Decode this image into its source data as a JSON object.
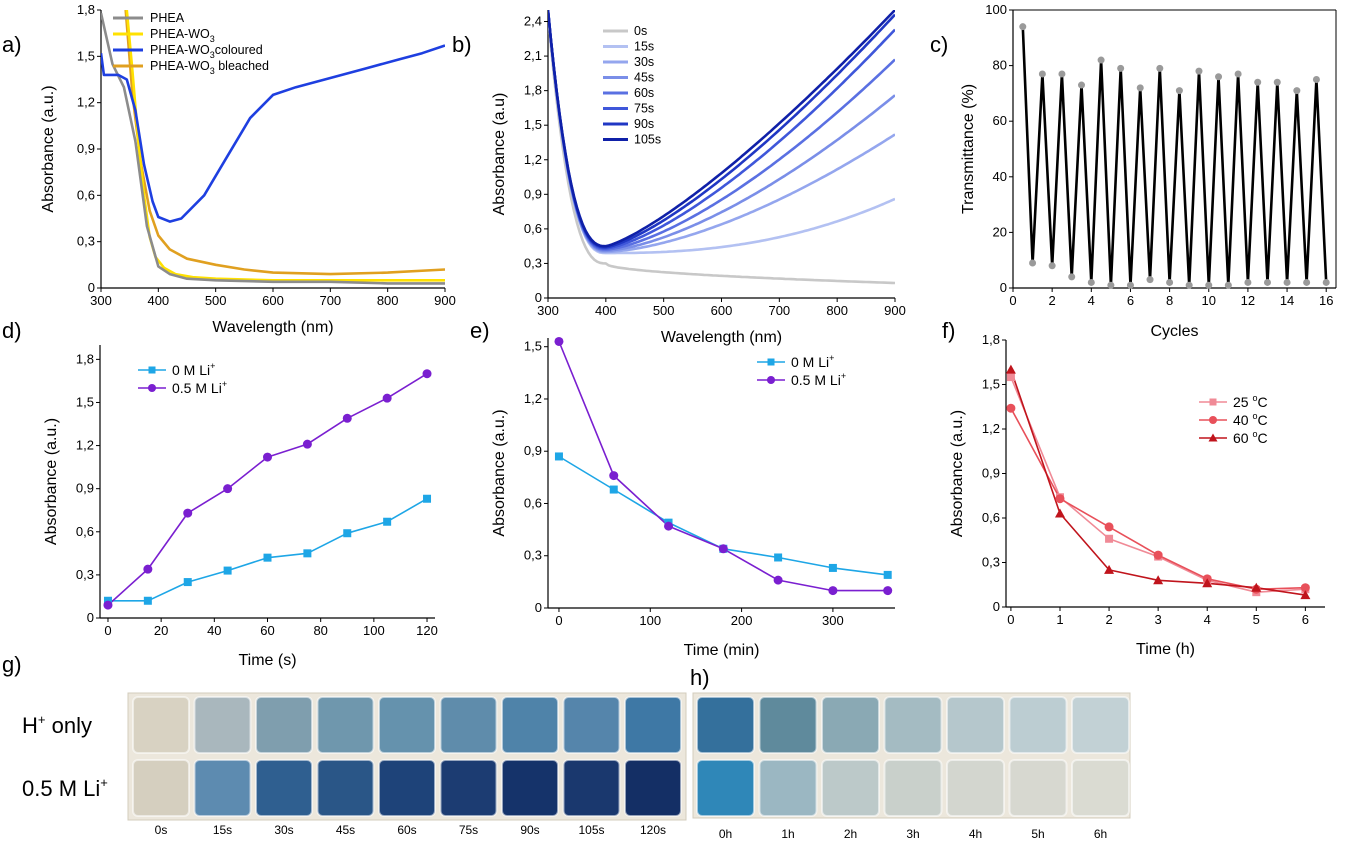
{
  "figure_labels": {
    "a": "a)",
    "b": "b)",
    "c": "c)",
    "d": "d)",
    "e": "e)",
    "f": "f)",
    "g": "g)",
    "h": "h)"
  },
  "chart_data": [
    {
      "id": "a",
      "type": "line",
      "xlabel": "Wavelength (nm)",
      "ylabel": "Absorbance (a.u.)",
      "xlim": [
        300,
        900
      ],
      "ylim": [
        0,
        1.8
      ],
      "xticks": [
        300,
        400,
        500,
        600,
        700,
        800,
        900
      ],
      "yticks": [
        "0",
        "0,3",
        "0,6",
        "0,9",
        "1,2",
        "1,5",
        "1,8"
      ],
      "legend_position": "top-left",
      "series": [
        {
          "name": "PHEA",
          "color": "#8c8c8c",
          "x": [
            300,
            320,
            340,
            360,
            380,
            400,
            420,
            450,
            500,
            600,
            700,
            800,
            900
          ],
          "y": [
            1.78,
            1.45,
            1.3,
            0.95,
            0.4,
            0.14,
            0.09,
            0.06,
            0.05,
            0.04,
            0.04,
            0.03,
            0.03
          ]
        },
        {
          "name": "PHEA-WO3",
          "color": "#ffe100",
          "x": [
            345,
            355,
            365,
            375,
            385,
            395,
            410,
            430,
            460,
            500,
            600,
            700,
            800,
            900
          ],
          "y": [
            1.8,
            1.4,
            0.95,
            0.6,
            0.33,
            0.2,
            0.13,
            0.09,
            0.07,
            0.06,
            0.05,
            0.05,
            0.05,
            0.05
          ]
        },
        {
          "name": "PHEA-WO3 coloured",
          "color": "#1e3fe0",
          "x": [
            300,
            305,
            330,
            345,
            360,
            375,
            390,
            400,
            420,
            440,
            480,
            520,
            560,
            600,
            640,
            700,
            760,
            820,
            860,
            900
          ],
          "y": [
            1.52,
            1.38,
            1.38,
            1.35,
            1.15,
            0.8,
            0.56,
            0.46,
            0.43,
            0.45,
            0.6,
            0.85,
            1.1,
            1.25,
            1.3,
            1.36,
            1.42,
            1.48,
            1.52,
            1.57
          ]
        },
        {
          "name": "PHEA-WO3 bleached",
          "color": "#e0a020",
          "x": [
            343,
            355,
            370,
            385,
            400,
            420,
            450,
            500,
            550,
            600,
            700,
            800,
            900
          ],
          "y": [
            1.8,
            1.25,
            0.8,
            0.5,
            0.34,
            0.25,
            0.19,
            0.15,
            0.12,
            0.1,
            0.09,
            0.1,
            0.12
          ]
        }
      ],
      "legend_labels": [
        {
          "base": "PHEA",
          "sub": ""
        },
        {
          "base": "PHEA-WO",
          "sub": "3"
        },
        {
          "base": "PHEA-WO",
          "sub": "3",
          "rest": "coloured"
        },
        {
          "base": "PHEA-WO",
          "sub": "3",
          "rest": " bleached"
        }
      ]
    },
    {
      "id": "b",
      "type": "line",
      "xlabel": "Wavelength (nm)",
      "ylabel": "Absorbance (a.u)",
      "xlim": [
        300,
        900
      ],
      "ylim": [
        0,
        2.5
      ],
      "xticks": [
        300,
        400,
        500,
        600,
        700,
        800,
        900
      ],
      "yticks": [
        "0",
        "0,3",
        "0,6",
        "0,9",
        "1,2",
        "1,5",
        "1,8",
        "2,1",
        "2,4"
      ],
      "legend_position": "top-left",
      "series": [
        {
          "name": "0s",
          "color": "#c8c8c8",
          "end": 0.13
        },
        {
          "name": "15s",
          "color": "#b3c1f2",
          "end": 0.86
        },
        {
          "name": "30s",
          "color": "#94a6ee",
          "end": 1.42
        },
        {
          "name": "45s",
          "color": "#7a8ee8",
          "end": 1.76
        },
        {
          "name": "60s",
          "color": "#5a70e2",
          "end": 2.07
        },
        {
          "name": "75s",
          "color": "#3f57da",
          "end": 2.33
        },
        {
          "name": "90s",
          "color": "#2037c4",
          "end": 2.46
        },
        {
          "name": "105s",
          "color": "#0f20a8",
          "end": 2.5
        }
      ]
    },
    {
      "id": "c",
      "type": "line",
      "xlabel": "Cycles",
      "ylabel": "Transmittance (%)",
      "xlim": [
        0,
        16.5
      ],
      "ylim": [
        0,
        100
      ],
      "xticks": [
        0,
        2,
        4,
        6,
        8,
        10,
        12,
        14,
        16
      ],
      "yticks": [
        0,
        20,
        40,
        60,
        80,
        100
      ],
      "series": [
        {
          "name": "",
          "color": "#000000",
          "x": [
            0.5,
            1.0,
            1.5,
            2.0,
            2.5,
            3.0,
            3.5,
            4.0,
            4.5,
            5.0,
            5.5,
            6.0,
            6.5,
            7.0,
            7.5,
            8.0,
            8.5,
            9.0,
            9.5,
            10.0,
            10.5,
            11.0,
            11.5,
            12.0,
            12.5,
            13.0,
            13.5,
            14.0,
            14.5,
            15.0,
            15.5,
            16.0
          ],
          "y": [
            94,
            9,
            77,
            8,
            77,
            4,
            73,
            2,
            82,
            1,
            79,
            1,
            72,
            3,
            79,
            2,
            71,
            1,
            78,
            1,
            76,
            1,
            77,
            2,
            74,
            2,
            74,
            2,
            71,
            2,
            75,
            2
          ]
        }
      ]
    },
    {
      "id": "d",
      "type": "line",
      "xlabel": "Time (s)",
      "ylabel": "Absorbance (a.u.)",
      "xlim": [
        -3,
        123
      ],
      "ylim": [
        0,
        1.9
      ],
      "xticks": [
        0,
        20,
        40,
        60,
        80,
        100,
        120
      ],
      "yticks": [
        "0",
        "0,3",
        "0,6",
        "0,9",
        "1,2",
        "1,5",
        "1,8"
      ],
      "legend_position": "top-left",
      "series": [
        {
          "name": "0 M Li+",
          "color": "#1ea6e6",
          "marker": "square",
          "x": [
            0,
            15,
            30,
            45,
            60,
            75,
            90,
            105,
            120
          ],
          "y": [
            0.12,
            0.12,
            0.25,
            0.33,
            0.42,
            0.45,
            0.59,
            0.67,
            0.83
          ]
        },
        {
          "name": "0.5 M Li+",
          "color": "#7a1fd0",
          "marker": "circle",
          "x": [
            0,
            15,
            30,
            45,
            60,
            75,
            90,
            105,
            120
          ],
          "y": [
            0.09,
            0.34,
            0.73,
            0.9,
            1.12,
            1.21,
            1.39,
            1.53,
            1.7
          ]
        }
      ],
      "legend_labels": [
        {
          "base": "0 M Li",
          "sup": "+"
        },
        {
          "base": "0.5 M Li",
          "sup": "+"
        }
      ]
    },
    {
      "id": "e",
      "type": "line",
      "xlabel": "Time (min)",
      "ylabel": "Absorbance (a.u.)",
      "xlim": [
        -12,
        368
      ],
      "ylim": [
        0,
        1.55
      ],
      "xticks": [
        0,
        100,
        200,
        300
      ],
      "yticks": [
        "0",
        "0,3",
        "0,6",
        "0,9",
        "1,2",
        "1,5"
      ],
      "legend_position": "top-right",
      "series": [
        {
          "name": "0 M Li+",
          "color": "#1ea6e6",
          "marker": "square",
          "x": [
            0,
            60,
            120,
            180,
            240,
            300,
            360
          ],
          "y": [
            0.87,
            0.68,
            0.49,
            0.34,
            0.29,
            0.23,
            0.19
          ]
        },
        {
          "name": "0.5 M Li+",
          "color": "#7a1fd0",
          "marker": "circle",
          "x": [
            0,
            60,
            120,
            180,
            240,
            300,
            360
          ],
          "y": [
            1.53,
            0.76,
            0.47,
            0.34,
            0.16,
            0.1,
            0.1
          ]
        }
      ],
      "legend_labels": [
        {
          "base": "0 M Li",
          "sup": "+"
        },
        {
          "base": "0.5 M Li",
          "sup": "+"
        }
      ]
    },
    {
      "id": "f",
      "type": "line",
      "xlabel": "Time (h)",
      "ylabel": "Absorbance (a.u.)",
      "xlim": [
        -0.1,
        6.4
      ],
      "ylim": [
        0,
        1.8
      ],
      "xticks": [
        0,
        1,
        2,
        3,
        4,
        5,
        6
      ],
      "yticks": [
        "0",
        "0,3",
        "0,6",
        "0,9",
        "1,2",
        "1,5",
        "1,8"
      ],
      "legend_position": "center-right",
      "series": [
        {
          "name": "25 ºC",
          "color": "#f08a96",
          "marker": "square",
          "x": [
            0,
            1,
            2,
            3,
            4,
            5,
            6
          ],
          "y": [
            1.55,
            0.74,
            0.46,
            0.34,
            0.18,
            0.1,
            0.12
          ]
        },
        {
          "name": "40 ºC",
          "color": "#e8505a",
          "marker": "circle",
          "x": [
            0,
            1,
            2,
            3,
            4,
            5,
            6
          ],
          "y": [
            1.34,
            0.73,
            0.54,
            0.35,
            0.19,
            0.12,
            0.13
          ]
        },
        {
          "name": "60 ºC",
          "color": "#c0141c",
          "marker": "triangle",
          "x": [
            0,
            1,
            2,
            3,
            4,
            5,
            6
          ],
          "y": [
            1.6,
            0.63,
            0.25,
            0.18,
            0.16,
            0.13,
            0.08
          ]
        }
      ],
      "legend_labels": [
        {
          "base": "25 ",
          "sup": "o",
          "rest": "C"
        },
        {
          "base": "40 ",
          "sup": "o",
          "rest": "C"
        },
        {
          "base": "60 ",
          "sup": "o",
          "rest": "C"
        }
      ]
    }
  ],
  "photo_g": {
    "row_labels": [
      {
        "base": "H",
        "sup": "+",
        "rest": " only"
      },
      {
        "base": "0.5 M Li",
        "sup": "+",
        "rest": ""
      }
    ],
    "times": [
      "0s",
      "15s",
      "30s",
      "45s",
      "60s",
      "75s",
      "90s",
      "105s",
      "120s"
    ],
    "row1_colors": [
      "#d8d2c2",
      "#a9b7bd",
      "#7f9eae",
      "#6f97ad",
      "#6592ad",
      "#5f8cab",
      "#4f83a9",
      "#5585ab",
      "#3e78a5"
    ],
    "row2_colors": [
      "#d5cfbf",
      "#5d8bb0",
      "#2f5f90",
      "#2a5687",
      "#1e4379",
      "#1c3c72",
      "#15336a",
      "#1a386e",
      "#142f65"
    ]
  },
  "photo_h": {
    "times": [
      "0h",
      "1h",
      "2h",
      "3h",
      "4h",
      "5h",
      "6h"
    ],
    "row1_colors": [
      "#34709c",
      "#5f8a9c",
      "#8aa9b4",
      "#a4bbc2",
      "#b5c7cc",
      "#bccdd2",
      "#c2d1d5"
    ],
    "row2_colors": [
      "#2f87b8",
      "#9bb7c2",
      "#bcc9c9",
      "#c9d0cb",
      "#d3d6cf",
      "#d7d8d0",
      "#dadbd2"
    ]
  }
}
